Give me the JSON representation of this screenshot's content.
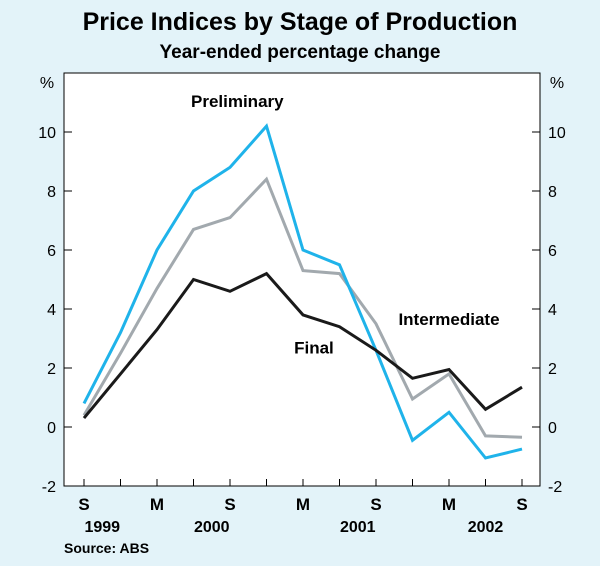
{
  "chart_data": {
    "type": "line",
    "title": "Price Indices by Stage of Production",
    "subtitle": "Year-ended percentage change",
    "ylabel_left": "%",
    "ylabel_right": "%",
    "ylim": [
      -2,
      12
    ],
    "yticks": [
      -2,
      0,
      2,
      4,
      6,
      8,
      10
    ],
    "grid": false,
    "categories": [
      "S",
      "",
      "M",
      "",
      "S",
      "",
      "M",
      "",
      "S",
      "",
      "M",
      "",
      "S"
    ],
    "x_tick_labels": [
      "S",
      "M",
      "S",
      "M",
      "S",
      "M",
      "S"
    ],
    "x_tick_indices": [
      0,
      2,
      4,
      6,
      8,
      10,
      12
    ],
    "year_labels": [
      {
        "label": "1999",
        "index": 0.5
      },
      {
        "label": "2000",
        "index": 3.5
      },
      {
        "label": "2001",
        "index": 7.5
      },
      {
        "label": "2002",
        "index": 11.0
      }
    ],
    "series": [
      {
        "name": "Preliminary",
        "color": "#1fb3ea",
        "values": [
          0.8,
          3.2,
          6.0,
          8.0,
          8.8,
          10.2,
          6.0,
          5.5,
          2.6,
          -0.45,
          0.5,
          -1.05,
          -0.75
        ],
        "label_index": 4.2,
        "label_value": 10.85
      },
      {
        "name": "Intermediate",
        "color": "#a2a9ae",
        "values": [
          0.4,
          2.5,
          4.7,
          6.7,
          7.1,
          8.4,
          5.3,
          5.2,
          3.5,
          0.95,
          1.8,
          -0.3,
          -0.35
        ],
        "label_index": 10.0,
        "label_value": 3.45
      },
      {
        "name": "Final",
        "color": "#1a1a1a",
        "values": [
          0.3,
          1.8,
          3.3,
          5.0,
          4.6,
          5.2,
          3.8,
          3.4,
          2.6,
          1.65,
          1.95,
          0.6,
          1.35
        ],
        "label_index": 6.3,
        "label_value": 2.5
      }
    ],
    "source": "Source: ABS"
  }
}
